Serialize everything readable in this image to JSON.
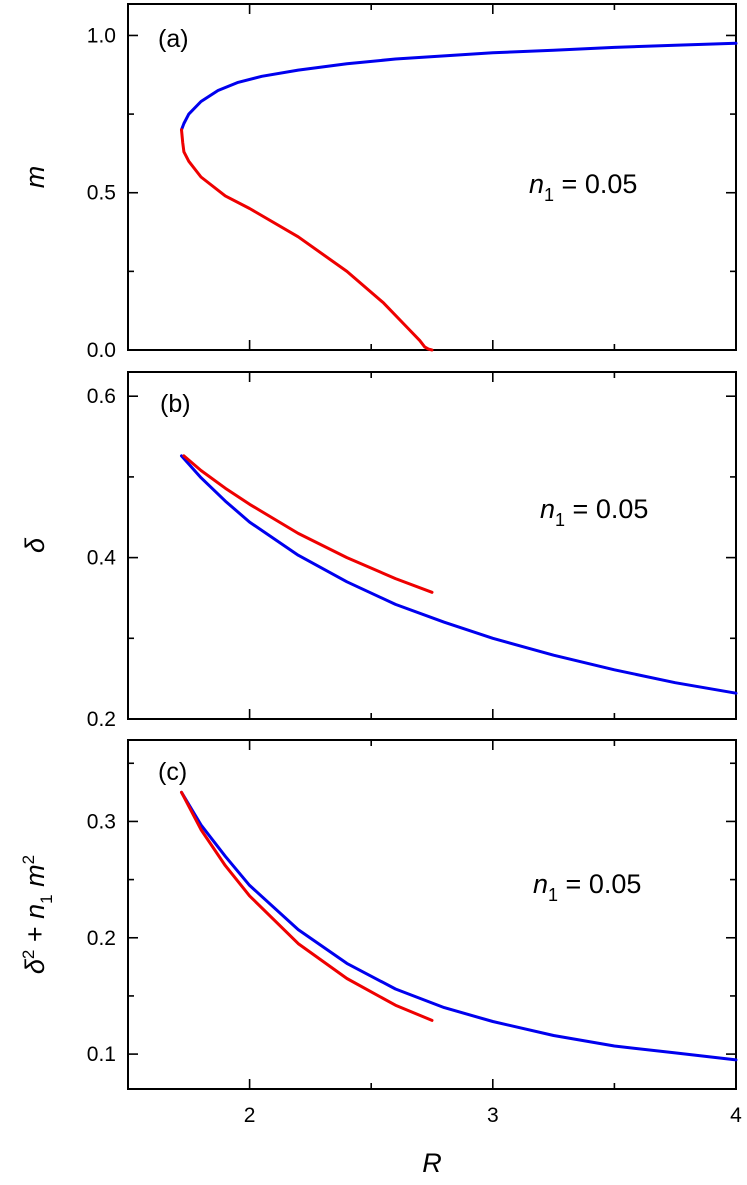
{
  "chart_data": [
    {
      "panel_label": "(a)",
      "type": "line",
      "ylabel": "m",
      "annotation_italic": "n",
      "annotation_sub": "1",
      "annotation_rest": " = 0.05",
      "xlim": [
        1.5,
        4.0
      ],
      "ylim": [
        0.0,
        1.1
      ],
      "y_ticks": [
        0.0,
        0.5,
        1.0
      ],
      "y_tick_labels": [
        "0.0",
        "0.5",
        "1.0"
      ],
      "y_minor_ticks": [
        0.25,
        0.75
      ],
      "series": [
        {
          "color": "#0000ee",
          "x": [
            1.72,
            1.73,
            1.75,
            1.8,
            1.87,
            1.95,
            2.05,
            2.2,
            2.4,
            2.6,
            2.8,
            3.0,
            3.25,
            3.5,
            3.75,
            4.0
          ],
          "y": [
            0.7,
            0.72,
            0.75,
            0.79,
            0.825,
            0.85,
            0.87,
            0.89,
            0.91,
            0.925,
            0.935,
            0.945,
            0.953,
            0.962,
            0.969,
            0.975
          ]
        },
        {
          "color": "#ee0000",
          "x": [
            1.72,
            1.725,
            1.73,
            1.75,
            1.8,
            1.9,
            2.0,
            2.2,
            2.4,
            2.55,
            2.65,
            2.7,
            2.72,
            2.735,
            2.75
          ],
          "y": [
            0.7,
            0.66,
            0.63,
            0.6,
            0.55,
            0.49,
            0.45,
            0.36,
            0.25,
            0.15,
            0.07,
            0.03,
            0.01,
            0.003,
            0.0
          ]
        }
      ]
    },
    {
      "panel_label": "(b)",
      "type": "line",
      "ylabel": "δ",
      "annotation_italic": "n",
      "annotation_sub": "1",
      "annotation_rest": " = 0.05",
      "xlim": [
        1.5,
        4.0
      ],
      "ylim": [
        0.2,
        0.63
      ],
      "y_ticks": [
        0.2,
        0.4,
        0.6
      ],
      "y_tick_labels": [
        "0.2",
        "0.4",
        "0.6"
      ],
      "y_minor_ticks": [
        0.3,
        0.5
      ],
      "series": [
        {
          "color": "#0000ee",
          "x": [
            1.72,
            1.8,
            1.9,
            2.0,
            2.2,
            2.4,
            2.6,
            2.8,
            3.0,
            3.25,
            3.5,
            3.75,
            4.0
          ],
          "y": [
            0.526,
            0.499,
            0.47,
            0.444,
            0.403,
            0.37,
            0.342,
            0.32,
            0.3,
            0.279,
            0.261,
            0.245,
            0.232
          ]
        },
        {
          "color": "#ee0000",
          "x": [
            1.73,
            1.8,
            1.9,
            2.0,
            2.2,
            2.4,
            2.6,
            2.75
          ],
          "y": [
            0.526,
            0.508,
            0.486,
            0.466,
            0.43,
            0.4,
            0.374,
            0.357
          ]
        }
      ]
    },
    {
      "panel_label": "(c)",
      "type": "line",
      "ylabel_parts": [
        "δ",
        "2",
        " + ",
        "n",
        "1",
        " m",
        "2"
      ],
      "annotation_italic": "n",
      "annotation_sub": "1",
      "annotation_rest": " = 0.05",
      "xlabel": "R",
      "xlim": [
        1.5,
        4.0
      ],
      "ylim": [
        0.07,
        0.37
      ],
      "y_ticks": [
        0.1,
        0.2,
        0.3
      ],
      "y_tick_labels": [
        "0.1",
        "0.2",
        "0.3"
      ],
      "y_minor_ticks": [
        0.15,
        0.25,
        0.35
      ],
      "x_ticks": [
        2,
        3,
        4
      ],
      "x_tick_labels": [
        "2",
        "3",
        "4"
      ],
      "x_minor_ticks": [
        1.5,
        2.5,
        3.5
      ],
      "series": [
        {
          "color": "#0000ee",
          "x": [
            1.72,
            1.8,
            1.9,
            2.0,
            2.2,
            2.4,
            2.6,
            2.8,
            3.0,
            3.25,
            3.5,
            3.75,
            4.0
          ],
          "y": [
            0.325,
            0.297,
            0.27,
            0.245,
            0.207,
            0.178,
            0.156,
            0.14,
            0.128,
            0.116,
            0.107,
            0.101,
            0.095
          ]
        },
        {
          "color": "#ee0000",
          "x": [
            1.72,
            1.8,
            1.9,
            2.0,
            2.2,
            2.4,
            2.6,
            2.75
          ],
          "y": [
            0.325,
            0.293,
            0.262,
            0.236,
            0.195,
            0.165,
            0.142,
            0.129
          ]
        }
      ]
    }
  ]
}
